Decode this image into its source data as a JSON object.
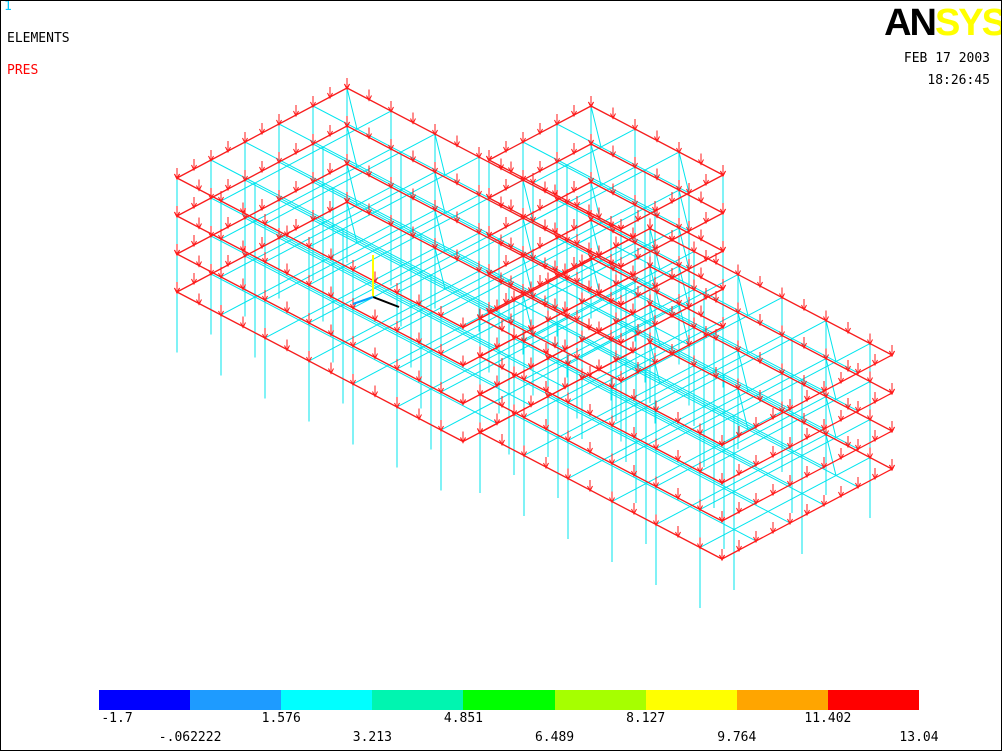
{
  "window": {
    "number": "1"
  },
  "plot_info": {
    "type_label": "ELEMENTS",
    "quantity_label": "PRES"
  },
  "logo": {
    "part1": "AN",
    "part2": "SYS",
    "color1": "#000000",
    "color2": "#ffff00"
  },
  "timestamp": {
    "date": "FEB 17 2003",
    "time": "18:26:45"
  },
  "colors": {
    "structure": "#00e5ee",
    "pressure": "#ff1a1a",
    "label_red": "#ff0000"
  },
  "legend": {
    "colors": [
      "#0000ff",
      "#1e9bff",
      "#00ffff",
      "#00f5b0",
      "#00ff00",
      "#a6ff00",
      "#ffff00",
      "#ffa500",
      "#ff0000"
    ],
    "upper_labels": [
      "-1.7",
      "1.576",
      "4.851",
      "8.127",
      "11.402"
    ],
    "lower_labels": [
      "-.062222",
      "3.213",
      "6.489",
      "9.764",
      "13.04"
    ]
  }
}
